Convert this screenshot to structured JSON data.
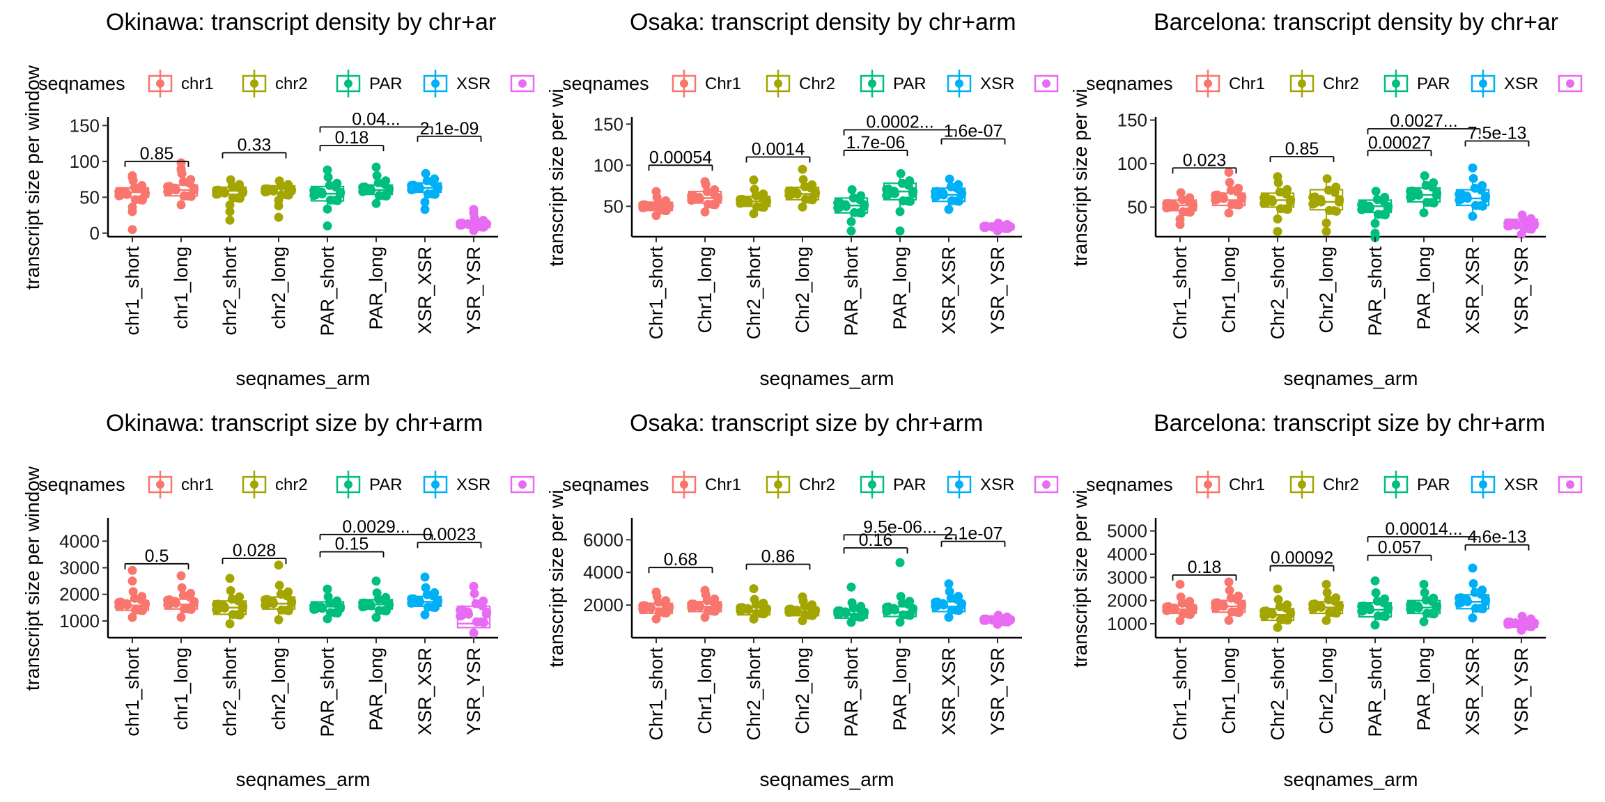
{
  "colors": {
    "chr1": "#F8766D",
    "chr2": "#A3A500",
    "PAR": "#00BF7D",
    "XSR": "#00B0F6",
    "YSR": "#E76BF3"
  },
  "chart_data": [
    {
      "type": "boxplot",
      "title": "Okinawa: transcript density by chr+ar",
      "legend_title": "seqnames",
      "legend": [
        "chr1",
        "chr2",
        "PAR",
        "XSR"
      ],
      "xlabel": "seqnames_arm",
      "ylabel": "transcript size per window",
      "categories": [
        "chr1_short",
        "chr1_long",
        "chr2_short",
        "chr2_long",
        "PAR_short",
        "PAR_long",
        "XSR_XSR",
        "YSR_YSR"
      ],
      "groups": [
        "chr1",
        "chr1",
        "chr2",
        "chr2",
        "PAR",
        "PAR",
        "XSR",
        "YSR"
      ],
      "ylim": [
        -5,
        160
      ],
      "yticks": [
        0,
        50,
        100,
        150
      ],
      "y_tick_labels": [
        "0",
        "50",
        "100",
        "150"
      ],
      "boxes": [
        {
          "q1": 50,
          "median": 57,
          "q3": 63,
          "lo": 35,
          "hi": 75,
          "points": [
            5,
            30,
            78,
            80
          ]
        },
        {
          "q1": 52,
          "median": 60,
          "q3": 67,
          "lo": 38,
          "hi": 85,
          "points": [
            88,
            90,
            98
          ]
        },
        {
          "q1": 54,
          "median": 59,
          "q3": 64,
          "lo": 38,
          "hi": 76,
          "points": [
            18,
            30
          ]
        },
        {
          "q1": 56,
          "median": 62,
          "q3": 66,
          "lo": 45,
          "hi": 74,
          "points": [
            22,
            38
          ]
        },
        {
          "q1": 45,
          "median": 55,
          "q3": 65,
          "lo": 32,
          "hi": 80,
          "points": [
            10,
            88
          ]
        },
        {
          "q1": 54,
          "median": 60,
          "q3": 67,
          "lo": 40,
          "hi": 82,
          "points": [
            92
          ]
        },
        {
          "q1": 57,
          "median": 63,
          "q3": 70,
          "lo": 42,
          "hi": 85,
          "points": [
            33
          ]
        },
        {
          "q1": 8,
          "median": 12,
          "q3": 16,
          "lo": 3,
          "hi": 22,
          "points": [
            28,
            33
          ]
        }
      ],
      "comparisons": [
        {
          "from": 0,
          "to": 1,
          "y": 100,
          "label": "0.85"
        },
        {
          "from": 2,
          "to": 3,
          "y": 112,
          "label": "0.33"
        },
        {
          "from": 4,
          "to": 5,
          "y": 122,
          "label": "0.18"
        },
        {
          "from": 4,
          "to": 6,
          "y": 148,
          "label": "0.04..."
        },
        {
          "from": 6,
          "to": 7,
          "y": 135,
          "label": "2.1e-09"
        }
      ]
    },
    {
      "type": "boxplot",
      "title": "Osaka: transcript density by chr+arm",
      "legend_title": "seqnames",
      "legend": [
        "Chr1",
        "Chr2",
        "PAR",
        "XSR"
      ],
      "xlabel": "seqnames_arm",
      "ylabel": "transcript size per wi",
      "categories": [
        "Chr1_short",
        "Chr1_long",
        "Chr2_short",
        "Chr2_long",
        "PAR_short",
        "PAR_long",
        "XSR_XSR",
        "YSR_YSR"
      ],
      "groups": [
        "chr1",
        "chr1",
        "chr2",
        "chr2",
        "PAR",
        "PAR",
        "XSR",
        "YSR"
      ],
      "ylim": [
        13,
        157
      ],
      "yticks": [
        50,
        100,
        150
      ],
      "y_tick_labels": [
        "50",
        "100",
        "150"
      ],
      "boxes": [
        {
          "q1": 45,
          "median": 50,
          "q3": 55,
          "lo": 38,
          "hi": 62,
          "points": [
            68
          ]
        },
        {
          "q1": 54,
          "median": 60,
          "q3": 68,
          "lo": 42,
          "hi": 78,
          "points": [
            80
          ]
        },
        {
          "q1": 50,
          "median": 56,
          "q3": 62,
          "lo": 40,
          "hi": 72,
          "points": [
            82
          ]
        },
        {
          "q1": 58,
          "median": 65,
          "q3": 73,
          "lo": 48,
          "hi": 84,
          "points": [
            95
          ]
        },
        {
          "q1": 42,
          "median": 51,
          "q3": 60,
          "lo": 30,
          "hi": 72,
          "points": [
            20
          ]
        },
        {
          "q1": 58,
          "median": 68,
          "q3": 78,
          "lo": 42,
          "hi": 92,
          "points": [
            20
          ]
        },
        {
          "q1": 56,
          "median": 64,
          "q3": 72,
          "lo": 45,
          "hi": 85,
          "points": []
        },
        {
          "q1": 22,
          "median": 24,
          "q3": 27,
          "lo": 20,
          "hi": 30,
          "points": []
        }
      ],
      "comparisons": [
        {
          "from": 0,
          "to": 1,
          "y": 100,
          "label": "0.00054"
        },
        {
          "from": 2,
          "to": 3,
          "y": 110,
          "label": "0.0014"
        },
        {
          "from": 4,
          "to": 5,
          "y": 118,
          "label": "1.7e-06"
        },
        {
          "from": 4,
          "to": 6,
          "y": 143,
          "label": "0.0002..."
        },
        {
          "from": 6,
          "to": 7,
          "y": 132,
          "label": "1.6e-07"
        }
      ]
    },
    {
      "type": "boxplot",
      "title": "Barcelona: transcript density by chr+ar",
      "legend_title": "seqnames",
      "legend": [
        "Chr1",
        "Chr2",
        "PAR",
        "XSR"
      ],
      "xlabel": "seqnames_arm",
      "ylabel": "transcript size per wi",
      "categories": [
        "Chr1_short",
        "Chr1_long",
        "Chr2_short",
        "Chr2_long",
        "PAR_short",
        "PAR_long",
        "XSR_XSR",
        "YSR_YSR"
      ],
      "groups": [
        "chr1",
        "chr1",
        "chr2",
        "chr2",
        "PAR",
        "PAR",
        "XSR",
        "YSR"
      ],
      "ylim": [
        16,
        152
      ],
      "yticks": [
        50,
        100,
        150
      ],
      "y_tick_labels": [
        "50",
        "100",
        "150"
      ],
      "boxes": [
        {
          "q1": 46,
          "median": 52,
          "q3": 58,
          "lo": 35,
          "hi": 68,
          "points": [
            30
          ]
        },
        {
          "q1": 52,
          "median": 58,
          "q3": 66,
          "lo": 42,
          "hi": 80,
          "points": [
            90
          ]
        },
        {
          "q1": 50,
          "median": 58,
          "q3": 66,
          "lo": 35,
          "hi": 80,
          "points": [
            22,
            85
          ]
        },
        {
          "q1": 47,
          "median": 56,
          "q3": 70,
          "lo": 30,
          "hi": 85,
          "points": [
            22
          ]
        },
        {
          "q1": 44,
          "median": 51,
          "q3": 58,
          "lo": 30,
          "hi": 70,
          "points": [
            15,
            20
          ]
        },
        {
          "q1": 56,
          "median": 64,
          "q3": 72,
          "lo": 42,
          "hi": 88,
          "points": []
        },
        {
          "q1": 52,
          "median": 60,
          "q3": 70,
          "lo": 38,
          "hi": 85,
          "points": [
            95
          ]
        },
        {
          "q1": 26,
          "median": 30,
          "q3": 36,
          "lo": 18,
          "hi": 42,
          "points": []
        }
      ],
      "comparisons": [
        {
          "from": 0,
          "to": 1,
          "y": 95,
          "label": "0.023"
        },
        {
          "from": 2,
          "to": 3,
          "y": 108,
          "label": "0.85"
        },
        {
          "from": 4,
          "to": 5,
          "y": 115,
          "label": "0.00027"
        },
        {
          "from": 4,
          "to": 6,
          "y": 140,
          "label": "0.0027..."
        },
        {
          "from": 6,
          "to": 7,
          "y": 126,
          "label": "7.5e-13"
        }
      ]
    },
    {
      "type": "boxplot",
      "title": "Okinawa: transcript size by chr+arm",
      "legend_title": "seqnames",
      "legend": [
        "chr1",
        "chr2",
        "PAR",
        "XSR"
      ],
      "xlabel": "seqnames_arm",
      "ylabel": "transcript size per window",
      "categories": [
        "chr1_short",
        "chr1_long",
        "chr2_short",
        "chr2_long",
        "PAR_short",
        "PAR_long",
        "XSR_XSR",
        "YSR_YSR"
      ],
      "groups": [
        "chr1",
        "chr1",
        "chr2",
        "chr2",
        "PAR",
        "PAR",
        "XSR",
        "YSR"
      ],
      "ylim": [
        370,
        4820
      ],
      "yticks": [
        1000,
        2000,
        3000,
        4000
      ],
      "y_tick_labels": [
        "1000",
        "2000",
        "3000",
        "4000"
      ],
      "boxes": [
        {
          "q1": 1400,
          "median": 1580,
          "q3": 1750,
          "lo": 1100,
          "hi": 2150,
          "points": [
            2500,
            2900
          ]
        },
        {
          "q1": 1450,
          "median": 1620,
          "q3": 1820,
          "lo": 1100,
          "hi": 2300,
          "points": [
            2700
          ]
        },
        {
          "q1": 1250,
          "median": 1500,
          "q3": 1750,
          "lo": 850,
          "hi": 2200,
          "points": [
            2600
          ]
        },
        {
          "q1": 1450,
          "median": 1650,
          "q3": 1900,
          "lo": 1000,
          "hi": 2400,
          "points": [
            3100
          ]
        },
        {
          "q1": 1380,
          "median": 1540,
          "q3": 1720,
          "lo": 1050,
          "hi": 1950,
          "points": [
            2200
          ]
        },
        {
          "q1": 1450,
          "median": 1620,
          "q3": 1800,
          "lo": 1100,
          "hi": 2100,
          "points": [
            2500
          ]
        },
        {
          "q1": 1550,
          "median": 1720,
          "q3": 1920,
          "lo": 1200,
          "hi": 2300,
          "points": [
            2650
          ]
        },
        {
          "q1": 750,
          "median": 900,
          "q3": 1550,
          "lo": 500,
          "hi": 2100,
          "points": [
            2300
          ]
        }
      ],
      "comparisons": [
        {
          "from": 0,
          "to": 1,
          "y": 3150,
          "label": "0.5"
        },
        {
          "from": 2,
          "to": 3,
          "y": 3350,
          "label": "0.028"
        },
        {
          "from": 4,
          "to": 5,
          "y": 3600,
          "label": "0.15"
        },
        {
          "from": 4,
          "to": 6,
          "y": 4250,
          "label": "0.0029..."
        },
        {
          "from": 6,
          "to": 7,
          "y": 3950,
          "label": "0.0023"
        }
      ]
    },
    {
      "type": "boxplot",
      "title": "Osaka: transcript size by chr+arm",
      "legend_title": "seqnames",
      "legend": [
        "Chr1",
        "Chr2",
        "PAR",
        "XSR"
      ],
      "xlabel": "seqnames_arm",
      "ylabel": "transcript size per wi",
      "categories": [
        "Chr1_short",
        "Chr1_long",
        "Chr2_short",
        "Chr2_long",
        "PAR_short",
        "PAR_long",
        "XSR_XSR",
        "YSR_YSR"
      ],
      "groups": [
        "chr1",
        "chr1",
        "chr2",
        "chr2",
        "PAR",
        "PAR",
        "XSR",
        "YSR"
      ],
      "ylim": [
        0,
        7250
      ],
      "yticks": [
        2000,
        4000,
        6000
      ],
      "y_tick_labels": [
        "2000",
        "4000",
        "6000"
      ],
      "boxes": [
        {
          "q1": 1500,
          "median": 1800,
          "q3": 2100,
          "lo": 1100,
          "hi": 2600,
          "points": [
            2800
          ]
        },
        {
          "q1": 1600,
          "median": 1900,
          "q3": 2200,
          "lo": 1200,
          "hi": 2700,
          "points": [
            2900
          ]
        },
        {
          "q1": 1400,
          "median": 1650,
          "q3": 1900,
          "lo": 1100,
          "hi": 2400,
          "points": [
            3000
          ]
        },
        {
          "q1": 1350,
          "median": 1600,
          "q3": 1850,
          "lo": 1000,
          "hi": 2300,
          "points": [
            2500
          ]
        },
        {
          "q1": 1200,
          "median": 1450,
          "q3": 1700,
          "lo": 900,
          "hi": 2200,
          "points": [
            3100
          ]
        },
        {
          "q1": 1300,
          "median": 1550,
          "q3": 1900,
          "lo": 900,
          "hi": 2600,
          "points": [
            4600
          ]
        },
        {
          "q1": 1600,
          "median": 1900,
          "q3": 2200,
          "lo": 1200,
          "hi": 2900,
          "points": [
            3300
          ]
        },
        {
          "q1": 950,
          "median": 1100,
          "q3": 1250,
          "lo": 800,
          "hi": 1400,
          "points": []
        }
      ],
      "comparisons": [
        {
          "from": 0,
          "to": 1,
          "y": 4300,
          "label": "0.68"
        },
        {
          "from": 2,
          "to": 3,
          "y": 4500,
          "label": "0.86"
        },
        {
          "from": 4,
          "to": 5,
          "y": 5500,
          "label": "0.16"
        },
        {
          "from": 4,
          "to": 6,
          "y": 6300,
          "label": "9.5e-06..."
        },
        {
          "from": 6,
          "to": 7,
          "y": 5900,
          "label": "2.1e-07"
        }
      ]
    },
    {
      "type": "boxplot",
      "title": "Barcelona: transcript size by chr+arm",
      "legend_title": "seqnames",
      "legend": [
        "Chr1",
        "Chr2",
        "PAR",
        "XSR"
      ],
      "xlabel": "seqnames_arm",
      "ylabel": "transcript size per wi",
      "categories": [
        "Chr1_short",
        "Chr1_long",
        "Chr2_short",
        "Chr2_long",
        "PAR_short",
        "PAR_long",
        "XSR_XSR",
        "YSR_YSR"
      ],
      "groups": [
        "chr1",
        "chr1",
        "chr2",
        "chr2",
        "PAR",
        "PAR",
        "XSR",
        "YSR"
      ],
      "ylim": [
        400,
        5500
      ],
      "yticks": [
        1000,
        2000,
        3000,
        4000,
        5000
      ],
      "y_tick_labels": [
        "1000",
        "2000",
        "3000",
        "4000",
        "5000"
      ],
      "boxes": [
        {
          "q1": 1450,
          "median": 1620,
          "q3": 1800,
          "lo": 1100,
          "hi": 2200,
          "points": [
            2700
          ]
        },
        {
          "q1": 1500,
          "median": 1750,
          "q3": 2000,
          "lo": 1100,
          "hi": 2500,
          "points": [
            2800
          ]
        },
        {
          "q1": 1150,
          "median": 1380,
          "q3": 1650,
          "lo": 800,
          "hi": 2100,
          "points": [
            2500
          ]
        },
        {
          "q1": 1450,
          "median": 1700,
          "q3": 1950,
          "lo": 1100,
          "hi": 2400,
          "points": [
            2700
          ]
        },
        {
          "q1": 1300,
          "median": 1600,
          "q3": 1900,
          "lo": 900,
          "hi": 2400,
          "points": [
            2850
          ]
        },
        {
          "q1": 1450,
          "median": 1700,
          "q3": 2000,
          "lo": 1050,
          "hi": 2400,
          "points": [
            2700
          ]
        },
        {
          "q1": 1650,
          "median": 1950,
          "q3": 2250,
          "lo": 1200,
          "hi": 2800,
          "points": [
            3400
          ]
        },
        {
          "q1": 850,
          "median": 1000,
          "q3": 1150,
          "lo": 700,
          "hi": 1350,
          "points": []
        }
      ],
      "comparisons": [
        {
          "from": 0,
          "to": 1,
          "y": 3100,
          "label": "0.18"
        },
        {
          "from": 2,
          "to": 3,
          "y": 3500,
          "label": "0.00092"
        },
        {
          "from": 4,
          "to": 5,
          "y": 3950,
          "label": "0.057"
        },
        {
          "from": 4,
          "to": 6,
          "y": 4750,
          "label": "0.00014..."
        },
        {
          "from": 6,
          "to": 7,
          "y": 4400,
          "label": "4.6e-13"
        }
      ]
    }
  ]
}
